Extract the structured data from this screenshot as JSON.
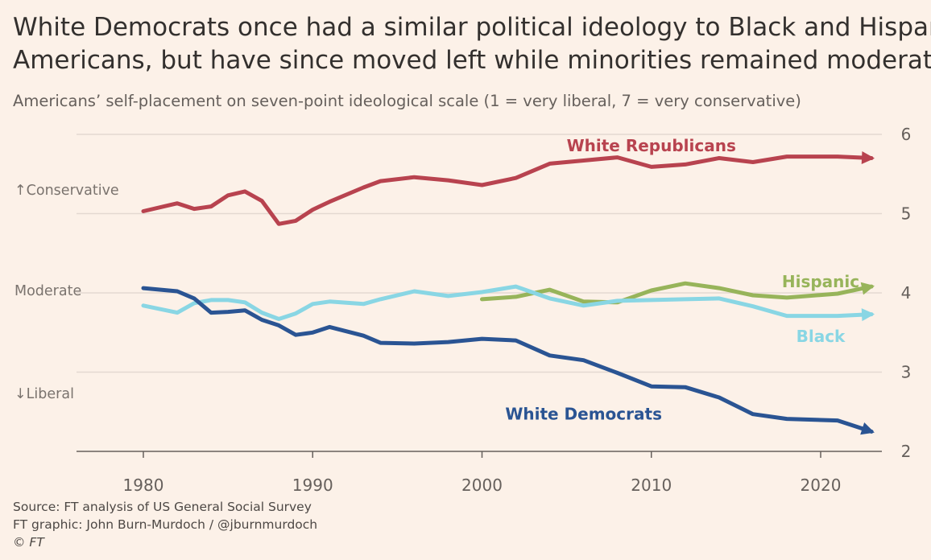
{
  "title_lines": [
    "White Democrats once had a similar political ideology to Black and Hispanic",
    "Americans, but have since moved left while minorities remained moderate"
  ],
  "subtitle": "Americans’ self-placement on seven-point ideological scale (1 = very liberal, 7 = very conservative)",
  "footer": {
    "source": "Source: FT analysis of US General Social Survey",
    "graphic": "FT graphic: John Burn-Murdoch / @jburnmurdoch",
    "copyright": "© FT"
  },
  "colors": {
    "background": "#fcf1e8",
    "white_republicans": "#b8434f",
    "hispanic": "#97b45a",
    "black": "#89d6e4",
    "white_democrats": "#2a5493",
    "grid": "#e3d9d1",
    "axis_text": "#66605c"
  },
  "chart_data": {
    "type": "line",
    "xlabel": "",
    "ylabel": "",
    "xlim": [
      1976,
      2024
    ],
    "ylim": [
      2,
      6
    ],
    "x_ticks": [
      1980,
      1990,
      2000,
      2010,
      2020
    ],
    "y_ticks": [
      2,
      3,
      4,
      5,
      6
    ],
    "y_axis_side": "right",
    "grid": "horizontal",
    "y_annotations": [
      {
        "label": "Conservative",
        "arrow": "↑",
        "y": 5.3
      },
      {
        "label": "Moderate",
        "arrow": "",
        "y": 4.03
      },
      {
        "label": "Liberal",
        "arrow": "↓",
        "y": 2.73
      }
    ],
    "series": [
      {
        "name": "White Republicans",
        "color_key": "white_republicans",
        "arrow_end": true,
        "label_at": [
          2010,
          5.86
        ],
        "x": [
          1980,
          1982,
          1983,
          1984,
          1985,
          1986,
          1987,
          1988,
          1989,
          1990,
          1991,
          1993,
          1994,
          1996,
          1998,
          2000,
          2002,
          2004,
          2006,
          2008,
          2010,
          2012,
          2014,
          2016,
          2018,
          2021,
          2023
        ],
        "values": [
          5.03,
          5.13,
          5.06,
          5.09,
          5.23,
          5.28,
          5.16,
          4.87,
          4.91,
          5.05,
          5.15,
          5.33,
          5.41,
          5.46,
          5.42,
          5.36,
          5.45,
          5.63,
          5.67,
          5.71,
          5.59,
          5.62,
          5.7,
          5.65,
          5.72,
          5.72,
          5.7
        ]
      },
      {
        "name": "Hispanic",
        "color_key": "hispanic",
        "arrow_end": true,
        "label_at": [
          2020,
          4.14
        ],
        "x": [
          2000,
          2002,
          2004,
          2006,
          2008,
          2010,
          2012,
          2014,
          2016,
          2018,
          2021,
          2023
        ],
        "values": [
          3.92,
          3.95,
          4.04,
          3.89,
          3.88,
          4.03,
          4.12,
          4.06,
          3.97,
          3.94,
          3.99,
          4.08
        ]
      },
      {
        "name": "Black",
        "color_key": "black",
        "arrow_end": true,
        "label_at": [
          2020,
          3.45
        ],
        "x": [
          1980,
          1982,
          1983,
          1984,
          1985,
          1986,
          1987,
          1988,
          1989,
          1990,
          1991,
          1993,
          1994,
          1996,
          1998,
          2000,
          2002,
          2004,
          2006,
          2008,
          2010,
          2012,
          2014,
          2016,
          2018,
          2021,
          2023
        ],
        "values": [
          3.84,
          3.75,
          3.87,
          3.91,
          3.91,
          3.88,
          3.75,
          3.67,
          3.74,
          3.86,
          3.89,
          3.86,
          3.92,
          4.02,
          3.96,
          4.01,
          4.08,
          3.93,
          3.84,
          3.9,
          3.91,
          3.92,
          3.93,
          3.83,
          3.71,
          3.71,
          3.73
        ]
      },
      {
        "name": "White Democrats",
        "color_key": "white_democrats",
        "arrow_end": true,
        "label_at": [
          2006,
          2.47
        ],
        "x": [
          1980,
          1982,
          1983,
          1984,
          1985,
          1986,
          1987,
          1988,
          1989,
          1990,
          1991,
          1993,
          1994,
          1996,
          1998,
          2000,
          2002,
          2004,
          2006,
          2008,
          2010,
          2012,
          2014,
          2016,
          2018,
          2021,
          2023
        ],
        "values": [
          4.06,
          4.02,
          3.93,
          3.75,
          3.76,
          3.78,
          3.66,
          3.59,
          3.47,
          3.5,
          3.57,
          3.46,
          3.37,
          3.36,
          3.38,
          3.42,
          3.4,
          3.21,
          3.15,
          2.99,
          2.82,
          2.81,
          2.68,
          2.47,
          2.41,
          2.39,
          2.25
        ]
      }
    ]
  }
}
